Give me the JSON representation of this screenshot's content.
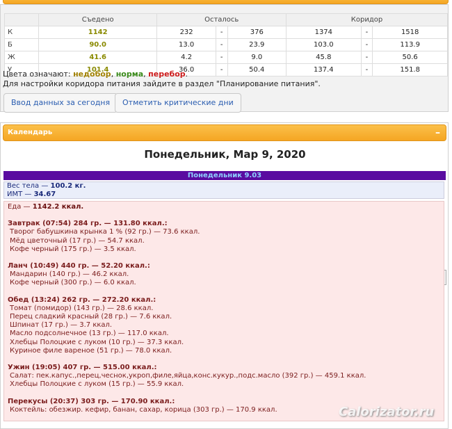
{
  "summary_table": {
    "headers": [
      "Съедено",
      "Осталось",
      "Коридор"
    ],
    "separator": "-",
    "rows": [
      {
        "label": "К",
        "eaten": "1142",
        "left_min": "232",
        "left_max": "376",
        "corridor_min": "1374",
        "corridor_max": "1518"
      },
      {
        "label": "Б",
        "eaten": "90.0",
        "left_min": "13.0",
        "left_max": "23.9",
        "corridor_min": "103.0",
        "corridor_max": "113.9"
      },
      {
        "label": "Ж",
        "eaten": "41.6",
        "left_min": "4.2",
        "left_max": "9.0",
        "corridor_min": "45.8",
        "corridor_max": "50.6"
      },
      {
        "label": "У",
        "eaten": "101.4",
        "left_min": "36.0",
        "left_max": "50.4",
        "corridor_min": "137.4",
        "corridor_max": "151.8"
      }
    ]
  },
  "legend": {
    "prefix": "Цвета означают:",
    "under": "недобор",
    "sep1": ",",
    "norm": "норма",
    "sep2": ",",
    "over": "перебор",
    "end": "."
  },
  "hint": "Для настройки коридора питания зайдите в раздел \"Планирование питания\".",
  "buttons": [
    "Ввод данных за сегодня",
    "Отметить критические дни"
  ],
  "calendar": {
    "title": "Календарь",
    "collapse": "–",
    "prev": "◄",
    "next": "►",
    "date": "Понедельник, Мар 9, 2020",
    "day_header": "Понедельник 9.03"
  },
  "body": {
    "weight_label": "Вес тела — ",
    "weight_value": "100.2 кг.",
    "bmi_label": "ИМТ — ",
    "bmi_value": "34.67",
    "food_label": "Еда — ",
    "food_value": "1142.2 ккал."
  },
  "meals": [
    {
      "title": "Завтрак (07:54) 284 гр. — 131.80 ккал.:",
      "items": [
        "Творог бабушкина крынка 1 % (92 гр.) — 73.6 ккал.",
        "Мёд цветочный (17 гр.) — 54.7 ккал.",
        "Кофе черный (175 гр.) — 3.5 ккал."
      ]
    },
    {
      "title": "Ланч (10:49) 440 гр. — 52.20 ккал.:",
      "items": [
        "Мандарин (140 гр.) — 46.2 ккал.",
        "Кофе черный (300 гр.) — 6.0 ккал."
      ]
    },
    {
      "title": "Обед (13:24) 262 гр. — 272.20 ккал.:",
      "items": [
        "Томат (помидор) (143 гр.) — 28.6 ккал.",
        "Перец сладкий красный (28 гр.) — 7.6 ккал.",
        "Шпинат (17 гр.) — 3.7 ккал.",
        "Масло подсолнечное (13 гр.) — 117.0 ккал.",
        "Хлебцы Полоцкие с луком (10 гр.) — 37.3 ккал.",
        "Куриное филе вареное (51 гр.) — 78.0 ккал."
      ]
    },
    {
      "title": "Ужин (19:05) 407 гр. — 515.00 ккал.:",
      "items": [
        "Салат: пек.капус.,перец,чеснок,укроп,филе,яйца,конс.кукур.,подс.масло (392 гр.) — 459.1 ккал.",
        "Хлебцы Полоцкие с луком (15 гр.) — 55.9 ккал."
      ]
    },
    {
      "title": "Перекусы (20:37) 303 гр. — 170.90 ккал.:",
      "items": [
        "Коктейль: обезжир. кефир, банан, сахар, корица (303 гр.) — 170.9 ккал."
      ]
    }
  ],
  "watermark": "Calorizator.ru"
}
